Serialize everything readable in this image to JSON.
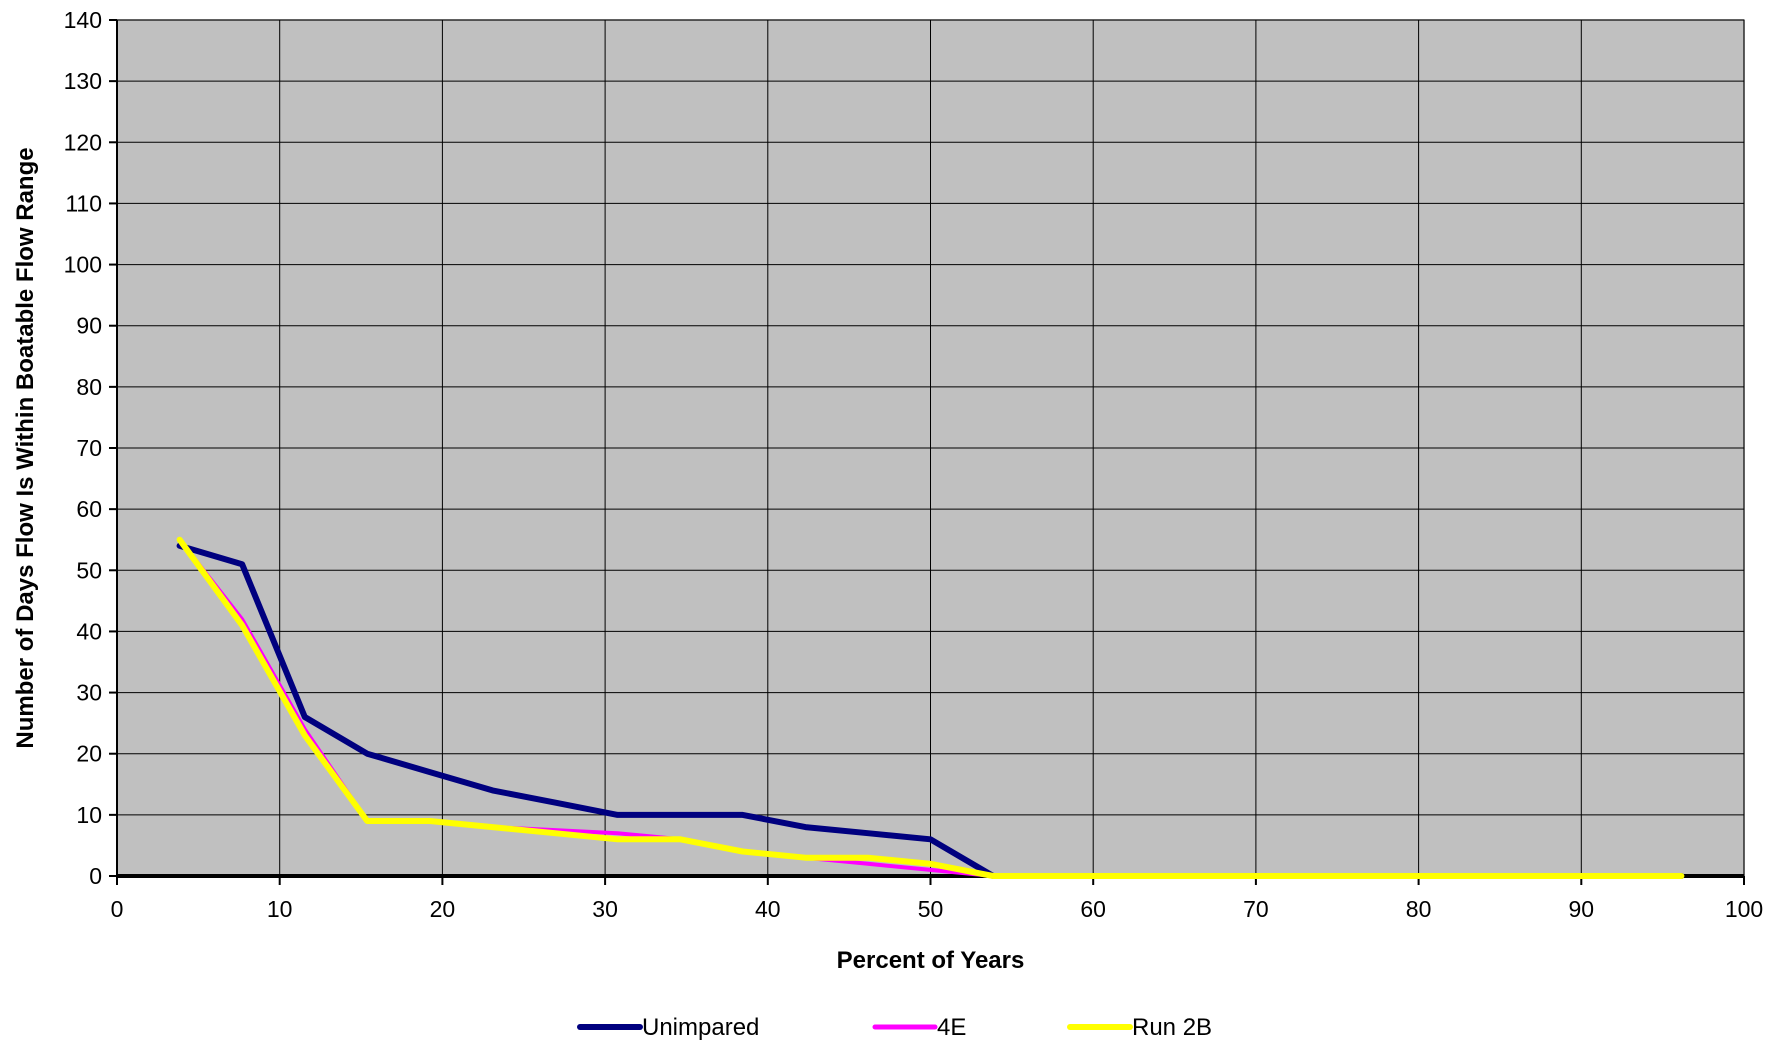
{
  "chart_data": {
    "type": "line",
    "title": "",
    "xlabel": "Percent of Years",
    "ylabel": "Number of Days Flow Is Within Boatable Flow Range",
    "xlim": [
      0,
      100
    ],
    "ylim": [
      0,
      140
    ],
    "x_ticks": [
      "0",
      "10",
      "20",
      "30",
      "40",
      "50",
      "60",
      "70",
      "80",
      "90",
      "100"
    ],
    "y_ticks": [
      "0",
      "10",
      "20",
      "30",
      "40",
      "50",
      "60",
      "70",
      "80",
      "90",
      "100",
      "110",
      "120",
      "130",
      "140"
    ],
    "grid": true,
    "plot_background": "#c0c0c0",
    "legend_position": "bottom",
    "series": [
      {
        "name": "Unimpared",
        "color": "#00007f",
        "x": [
          3.85,
          7.69,
          11.54,
          15.38,
          19.23,
          23.08,
          26.92,
          30.77,
          34.62,
          38.46,
          42.31,
          46.15,
          50.0,
          53.85,
          57.69,
          61.54,
          65.38,
          69.23,
          73.08,
          76.92,
          80.77,
          84.62,
          88.46,
          92.31,
          96.15
        ],
        "values": [
          54,
          51,
          26,
          20,
          17,
          14,
          12,
          10,
          10,
          10,
          8,
          7,
          6,
          0,
          0,
          0,
          0,
          0,
          0,
          0,
          0,
          0,
          0,
          0,
          0
        ]
      },
      {
        "name": "4E",
        "color": "#ff00ff",
        "x": [
          3.85,
          7.69,
          11.54,
          15.38,
          19.23,
          23.08,
          26.92,
          30.77,
          34.62,
          38.46,
          42.31,
          46.15,
          50.0,
          53.85,
          57.69,
          61.54,
          65.38,
          69.23,
          73.08,
          76.92,
          80.77,
          84.62,
          88.46,
          92.31,
          96.15
        ],
        "values": [
          55,
          42,
          24,
          9,
          9,
          8,
          7.5,
          7,
          6,
          4,
          3,
          2,
          1,
          0,
          0,
          0,
          0,
          0,
          0,
          0,
          0,
          0,
          0,
          0,
          0
        ]
      },
      {
        "name": "Run 2B",
        "color": "#ffff00",
        "x": [
          3.85,
          7.69,
          11.54,
          15.38,
          19.23,
          23.08,
          26.92,
          30.77,
          34.62,
          38.46,
          42.31,
          46.15,
          50.0,
          53.85,
          57.69,
          61.54,
          65.38,
          69.23,
          73.08,
          76.92,
          80.77,
          84.62,
          88.46,
          92.31,
          96.15
        ],
        "values": [
          55,
          41,
          23,
          9,
          9,
          8,
          7,
          6,
          6,
          4,
          3,
          3,
          2,
          0,
          0,
          0,
          0,
          0,
          0,
          0,
          0,
          0,
          0,
          0,
          0
        ]
      }
    ]
  }
}
